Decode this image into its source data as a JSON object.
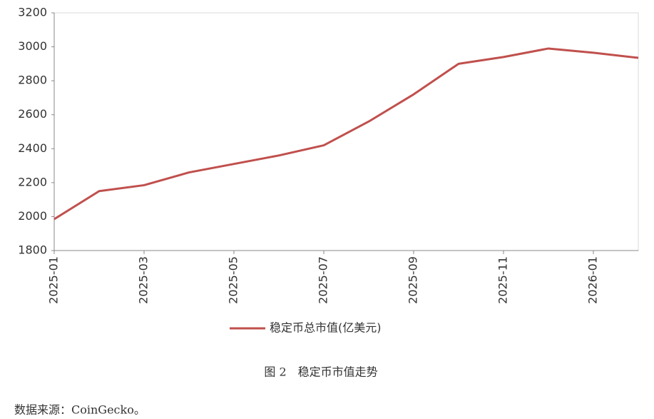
{
  "chart_data": {
    "type": "line",
    "x": [
      "2025-01",
      "2025-02",
      "2025-03",
      "2025-04",
      "2025-05",
      "2025-06",
      "2025-07",
      "2025-08",
      "2025-09",
      "2025-10",
      "2025-11",
      "2025-12",
      "2026-01",
      "2026-02"
    ],
    "series": [
      {
        "name": "稳定币总市值(亿美元)",
        "color": "#c0504d",
        "values": [
          1985,
          2150,
          2185,
          2260,
          2310,
          2360,
          2420,
          2560,
          2720,
          2900,
          2940,
          2990,
          2965,
          2935
        ]
      }
    ],
    "ylim": [
      1800,
      3200
    ],
    "yticks": [
      1800,
      2000,
      2200,
      2400,
      2600,
      2800,
      3000,
      3200
    ],
    "xticks": [
      "2025-01",
      "2025-03",
      "2025-05",
      "2025-07",
      "2025-09",
      "2025-11",
      "2026-01"
    ],
    "legend": "bottom"
  },
  "caption": "图 2　稳定币市值走势",
  "source": "数据来源：CoinGecko。"
}
